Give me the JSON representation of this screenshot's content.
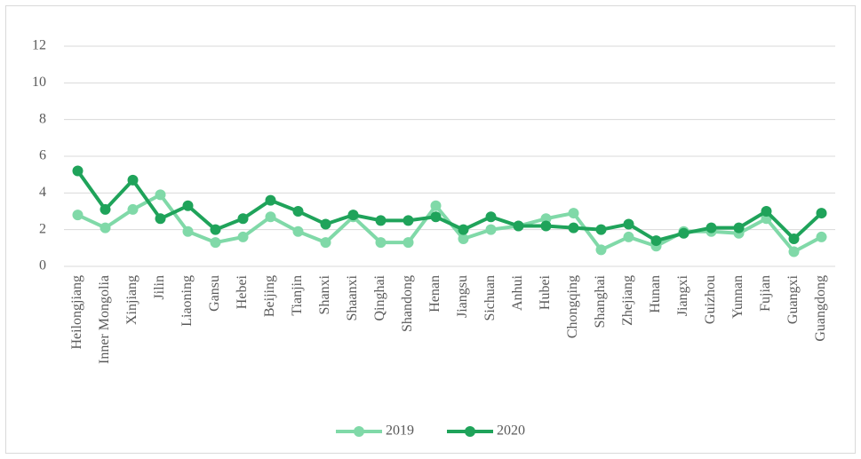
{
  "chart_data": {
    "type": "line",
    "categories": [
      "Heilongjiang",
      "Inner Mongolia",
      "Xinjiang",
      "Jilin",
      "Liaoning",
      "Gansu",
      "Hebei",
      "Beijing",
      "Tianjin",
      "Shanxi",
      "Shaanxi",
      "Qinghai",
      "Shandong",
      "Henan",
      "Jiangsu",
      "Sichuan",
      "Anhui",
      "Hubei",
      "Chongqing",
      "Shanghai",
      "Zhejiang",
      "Hunan",
      "Jiangxi",
      "Guizhou",
      "Yunnan",
      "Fujian",
      "Guangxi",
      "Guangdong"
    ],
    "series": [
      {
        "name": "2019",
        "color": "#80d9a8",
        "values": [
          2.8,
          2.1,
          3.1,
          3.9,
          1.9,
          1.3,
          1.6,
          2.7,
          1.9,
          1.3,
          2.7,
          1.3,
          1.3,
          3.3,
          1.5,
          2.0,
          2.2,
          2.6,
          2.9,
          0.9,
          1.6,
          1.1,
          1.9,
          1.9,
          1.8,
          2.6,
          0.8,
          1.6
        ]
      },
      {
        "name": "2020",
        "color": "#1fa35a",
        "values": [
          5.2,
          3.1,
          4.7,
          2.6,
          3.3,
          2.0,
          2.6,
          3.6,
          3.0,
          2.3,
          2.8,
          2.5,
          2.5,
          2.7,
          2.0,
          2.7,
          2.2,
          2.2,
          2.1,
          2.0,
          2.3,
          1.4,
          1.8,
          2.1,
          2.1,
          3.0,
          1.5,
          2.9
        ]
      }
    ],
    "ylim": [
      0,
      12
    ],
    "yticks": [
      0,
      2,
      4,
      6,
      8,
      10,
      12
    ],
    "grid": true,
    "legend": "bottom"
  }
}
